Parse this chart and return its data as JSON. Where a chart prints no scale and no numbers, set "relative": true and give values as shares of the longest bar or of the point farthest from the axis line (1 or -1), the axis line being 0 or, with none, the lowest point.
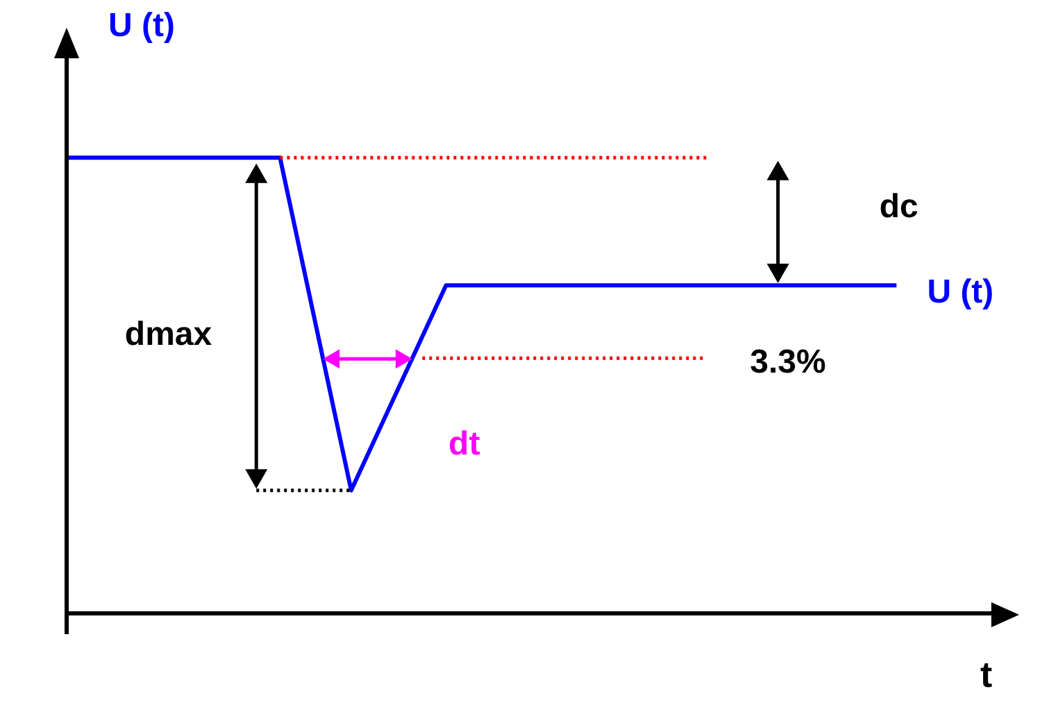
{
  "chart_data": {
    "type": "line",
    "relative": true,
    "xlabel": "t",
    "ylabel": "U (t)",
    "marker": "none",
    "categories": [
      null,
      null,
      null,
      null,
      null,
      null,
      null,
      null,
      null,
      null,
      null,
      null,
      null,
      null,
      null,
      null,
      null,
      null,
      null,
      null,
      null,
      null,
      null,
      null,
      null,
      null,
      null,
      null,
      null,
      null,
      null,
      null,
      null,
      null,
      null,
      null,
      null,
      null,
      null,
      null
    ],
    "series": [
      {
        "name": "U (t)",
        "color": "#0000ff",
        "values": [
          1,
          null,
          null,
          null,
          null,
          null,
          null,
          null,
          null,
          1,
          null,
          null,
          0.27,
          null,
          null,
          null,
          0.72,
          null,
          null,
          null,
          null,
          null,
          null,
          null,
          null,
          null,
          null,
          null,
          null,
          null,
          null,
          null,
          null,
          null,
          null,
          0.72,
          null,
          null,
          null,
          null
        ]
      },
      {
        "color": "#ff0000",
        "line_style": "dotted",
        "values": [
          null,
          null,
          null,
          null,
          null,
          null,
          null,
          null,
          null,
          1,
          null,
          null,
          null,
          null,
          null,
          null,
          null,
          null,
          null,
          null,
          null,
          null,
          null,
          null,
          null,
          null,
          null,
          1,
          null,
          null,
          null,
          null,
          null,
          null,
          null,
          null,
          null,
          null,
          null,
          null
        ]
      },
      {
        "color": "#ff0000",
        "line_style": "dotted",
        "values": [
          null,
          null,
          null,
          null,
          null,
          null,
          null,
          null,
          null,
          null,
          null,
          null,
          null,
          null,
          null,
          0.56,
          null,
          null,
          null,
          null,
          null,
          null,
          null,
          null,
          null,
          null,
          null,
          0.56,
          null,
          null,
          null,
          null,
          null,
          null,
          null,
          null,
          null,
          null,
          null,
          null
        ]
      },
      {
        "color": "#000000",
        "line_style": "dotted",
        "values": [
          null,
          null,
          null,
          null,
          null,
          null,
          null,
          null,
          0.27,
          null,
          null,
          null,
          0.27,
          null,
          null,
          null,
          null,
          null,
          null,
          null,
          null,
          null,
          null,
          null,
          null,
          null,
          null,
          null,
          null,
          null,
          null,
          null,
          null,
          null,
          null,
          null,
          null,
          null,
          null,
          null
        ]
      }
    ],
    "annotations": [
      "dmax",
      "dc",
      "dt",
      "3.3%"
    ]
  }
}
